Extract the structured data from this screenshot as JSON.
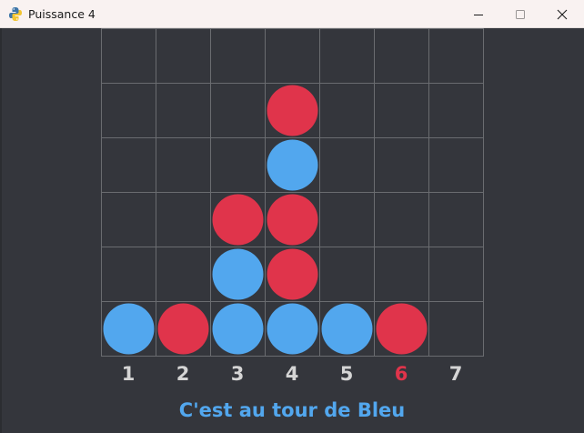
{
  "window": {
    "title": "Puissance 4",
    "app_icon": "python-icon",
    "controls": [
      "minimize-icon",
      "maximize-icon",
      "close-icon"
    ]
  },
  "board": {
    "rows": 6,
    "cols": 7,
    "grid_color": "#6a6c70",
    "colors": {
      "R": "#e0344b",
      "B": "#52a7ee"
    },
    "cells": [
      [
        "",
        "",
        "",
        "",
        "",
        "",
        ""
      ],
      [
        "",
        "",
        "",
        "R",
        "",
        "",
        ""
      ],
      [
        "",
        "",
        "",
        "B",
        "",
        "",
        ""
      ],
      [
        "",
        "",
        "R",
        "R",
        "",
        "",
        ""
      ],
      [
        "",
        "",
        "B",
        "R",
        "",
        "",
        ""
      ],
      [
        "B",
        "R",
        "B",
        "B",
        "B",
        "R",
        ""
      ]
    ]
  },
  "columns": {
    "labels": [
      "1",
      "2",
      "3",
      "4",
      "5",
      "6",
      "7"
    ],
    "highlighted_index": 5,
    "highlight_color": "#e0344b"
  },
  "status": {
    "text": "C'est au tour de Bleu",
    "color": "#52a7ee"
  }
}
